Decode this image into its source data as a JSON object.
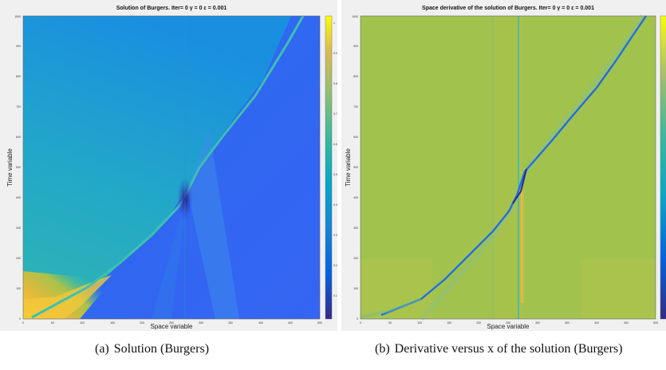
{
  "figure": {
    "captions": [
      {
        "label": "(a)",
        "text": "Solution (Burgers)"
      },
      {
        "label": "(b)",
        "text": "Derivative versus x of the solution (Burgers)"
      }
    ]
  },
  "chart_data": [
    {
      "type": "heatmap",
      "title": "Solution of Burgers. Iter= 0 γ = 0 ε = 0.001",
      "xlabel": "Space variable",
      "ylabel": "Time variable",
      "xticks": [
        "0",
        "50",
        "100",
        "150",
        "200",
        "250",
        "300",
        "350",
        "400",
        "450",
        "500"
      ],
      "yticks": [
        "0",
        "100",
        "200",
        "300",
        "400",
        "500",
        "600",
        "700",
        "800",
        "900",
        "1000"
      ],
      "xlim": [
        0,
        500
      ],
      "ylim": [
        0,
        1000
      ],
      "colorbar_ticks": [
        "0.1",
        "0.2",
        "0.3",
        "0.4",
        "0.5",
        "0.6",
        "0.7",
        "0.8",
        "0.9",
        "1"
      ],
      "colormap": "parula"
    },
    {
      "type": "heatmap",
      "title": "Space derivative of the solution of Burgers. Iter= 0 γ = 0 ε = 0.001",
      "xlabel": "Space variable",
      "ylabel": "Time variable",
      "xticks": [
        "0",
        "50",
        "100",
        "150",
        "200",
        "250",
        "300",
        "350",
        "400",
        "450",
        "500"
      ],
      "yticks": [
        "0",
        "100",
        "200",
        "300",
        "400",
        "500",
        "600",
        "700",
        "800",
        "900",
        "1000"
      ],
      "xlim": [
        0,
        500
      ],
      "ylim": [
        0,
        1000
      ],
      "colormap": "parula"
    }
  ]
}
